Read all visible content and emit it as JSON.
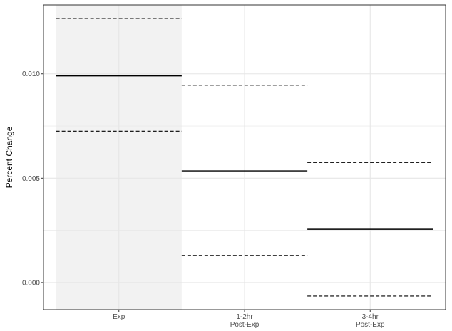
{
  "chart_data": {
    "type": "interval-segments",
    "ylabel": "Percent Change",
    "xlabel": "",
    "categories": [
      {
        "lines": [
          "Exp"
        ]
      },
      {
        "lines": [
          "1-2hr",
          "Post-Exp"
        ]
      },
      {
        "lines": [
          "3-4hr",
          "Post-Exp"
        ]
      }
    ],
    "estimates": [
      0.0099,
      0.00535,
      0.00255
    ],
    "lower": [
      0.00725,
      0.0013,
      -0.00065
    ],
    "upper": [
      0.01265,
      0.00945,
      0.00575
    ],
    "highlighted_category": 0,
    "ylim": [
      -0.0013,
      0.0133
    ],
    "yticks": [
      0.0,
      0.005,
      0.01
    ],
    "ytick_labels": [
      "0.000",
      "0.005",
      "0.010"
    ],
    "grid": true,
    "colors": {
      "highlight_band": "#f2f2f2",
      "grid": "#e6e6e6",
      "line": "#000000",
      "panel_border": "#333333"
    }
  }
}
